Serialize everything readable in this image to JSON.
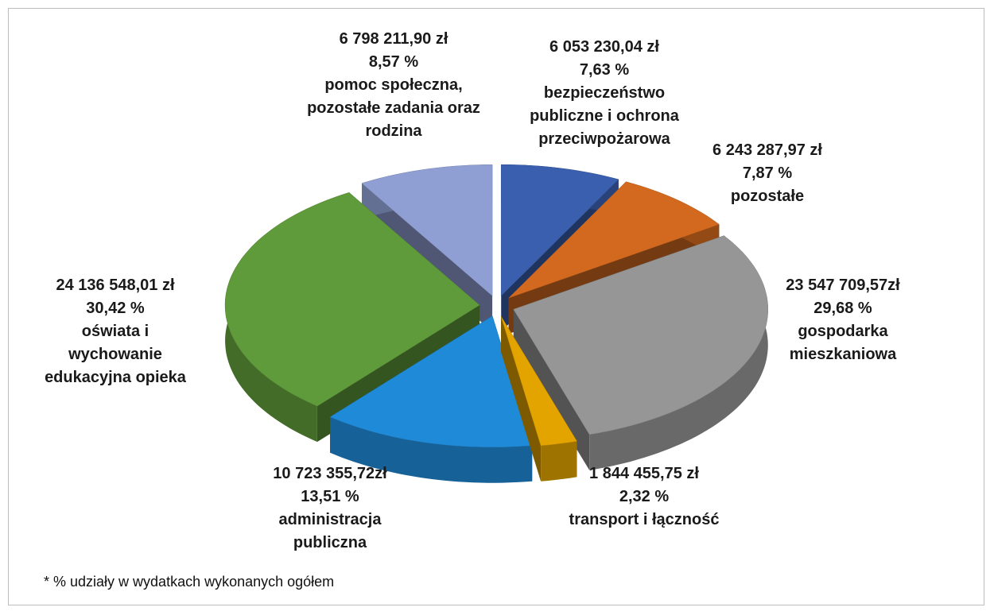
{
  "chart_data": {
    "type": "pie3d",
    "categories": [
      "bezpieczeństwo publiczne i ochrona przeciwpożarowa",
      "pozostałe",
      "gospodarka mieszkaniowa",
      "transport i łączność",
      "administracja publiczna",
      "oświata i wychowanie edukacyjna opieka",
      "pomoc społeczna, pozostałe zadania oraz rodzina"
    ],
    "values": [
      7.63,
      7.87,
      29.68,
      2.32,
      13.51,
      30.42,
      8.57
    ],
    "value_labels": [
      "7,63 %",
      "7,87 %",
      "29,68 %",
      "2,32 %",
      "13,51 %",
      "30,42 %",
      "8,57 %"
    ],
    "amount_labels": [
      "6 053 230,04 zł",
      "6 243 287,97 zł",
      "23 547 709,57zł",
      "1 844 455,75 zł",
      "10 723 355,72zł",
      "24 136 548,01 zł",
      "6 798 211,90 zł"
    ],
    "colors": [
      "#3a5fae",
      "#d2691e",
      "#969696",
      "#e3a400",
      "#1f8bd8",
      "#5f9a3b",
      "#8f9fd3"
    ],
    "footnote": "* % udziały w wydatkach wykonanych ogółem"
  }
}
